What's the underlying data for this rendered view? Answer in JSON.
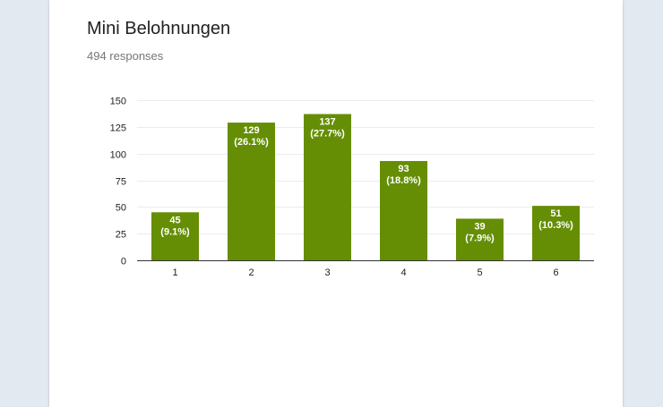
{
  "question": {
    "title": "Mini Belohnungen",
    "responses": "494 responses"
  },
  "colors": {
    "bar": "#658e05",
    "grid": "#ebebeb",
    "axis": "#333333",
    "tick_text": "#222222",
    "label_text": "#ffffff"
  },
  "chart_data": {
    "type": "bar",
    "title": "",
    "xlabel": "",
    "ylabel": "",
    "categories": [
      "1",
      "2",
      "3",
      "4",
      "5",
      "6"
    ],
    "values": [
      45,
      129,
      137,
      93,
      39,
      51
    ],
    "percent_labels": [
      "(9.1%)",
      "(26.1%)",
      "(27.7%)",
      "(18.8%)",
      "(7.9%)",
      "(10.3%)"
    ],
    "ylim": [
      0,
      150
    ],
    "yticks": [
      0,
      25,
      50,
      75,
      100,
      125,
      150
    ],
    "grid": true,
    "legend": "none"
  }
}
